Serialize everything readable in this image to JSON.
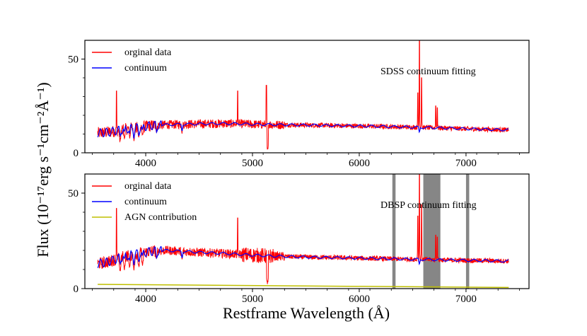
{
  "chart_data": [
    {
      "type": "line",
      "title": "",
      "annotation": "SDSS continuum fitting",
      "xlim": [
        3430,
        7590
      ],
      "ylim": [
        0,
        60
      ],
      "xticks": [
        4000,
        5000,
        6000,
        7000
      ],
      "yticks": [
        0,
        50
      ],
      "series": [
        {
          "name": "orginal data",
          "color": "#ff0000"
        },
        {
          "name": "continuum",
          "color": "#0000ff"
        }
      ],
      "continuum": {
        "x": [
          3550,
          3650,
          3750,
          3850,
          3950,
          4050,
          4200,
          4350,
          4500,
          4700,
          4860,
          5000,
          5200,
          5500,
          5800,
          6100,
          6400,
          6600,
          6800,
          7000,
          7200,
          7400
        ],
        "y": [
          10.5,
          11.0,
          12.0,
          13.0,
          13.5,
          14.5,
          15.0,
          15.2,
          15.4,
          15.6,
          15.5,
          15.2,
          15.0,
          14.8,
          14.5,
          14.2,
          13.8,
          13.5,
          13.2,
          12.8,
          12.5,
          12.2
        ]
      },
      "emission_lines": {
        "x": [
          3727,
          4861,
          5130,
          6548,
          6563,
          6584,
          6717,
          6731
        ],
        "y": [
          33,
          33,
          36,
          32,
          60,
          40,
          25,
          24
        ]
      },
      "absorption_dips": {
        "x": [
          3760,
          3800,
          3850,
          3890,
          3935,
          3970,
          4101,
          4340,
          5140
        ],
        "y": [
          5,
          6,
          7,
          6,
          7,
          8,
          10,
          10,
          0
        ]
      }
    },
    {
      "type": "line",
      "title": "",
      "annotation": "DBSP continuum fitting",
      "xlim": [
        3430,
        7590
      ],
      "ylim": [
        0,
        60
      ],
      "xticks": [
        4000,
        5000,
        6000,
        7000
      ],
      "yticks": [
        0,
        50
      ],
      "series": [
        {
          "name": "orginal data",
          "color": "#ff0000"
        },
        {
          "name": "continuum",
          "color": "#0000ff"
        },
        {
          "name": "AGN contribution",
          "color": "#bfbf00"
        }
      ],
      "continuum": {
        "x": [
          3550,
          3650,
          3750,
          3850,
          3950,
          4050,
          4200,
          4350,
          4500,
          4700,
          4860,
          5000,
          5200,
          5500,
          5800,
          6100,
          6400,
          6600,
          6800,
          7000,
          7200,
          7400
        ],
        "y": [
          13.0,
          14.0,
          16.0,
          17.5,
          18.5,
          19.5,
          20.0,
          19.5,
          19.0,
          18.5,
          18.0,
          17.5,
          17.0,
          16.5,
          16.2,
          15.8,
          15.5,
          15.3,
          15.0,
          14.8,
          14.6,
          14.4
        ]
      },
      "emission_lines": {
        "x": [
          3727,
          4861,
          6548,
          6563,
          6584,
          6717,
          6731
        ],
        "y": [
          42,
          37,
          38,
          60,
          44,
          28,
          27
        ]
      },
      "absorption_dips": {
        "x": [
          3760,
          3800,
          3850,
          3890,
          3935,
          3970,
          4101,
          4340,
          5140
        ],
        "y": [
          8,
          9,
          10,
          9,
          10,
          11,
          14,
          14,
          1
        ]
      },
      "agn": {
        "x": [
          3550,
          7400
        ],
        "y": [
          2.2,
          0.6
        ]
      },
      "masked_regions": [
        [
          6310,
          6340
        ],
        [
          6600,
          6760
        ],
        [
          7000,
          7030
        ]
      ]
    }
  ],
  "axes": {
    "xlabel": "Restframe Wavelength (Å)",
    "ylabel": "Flux (10⁻¹⁷erg s⁻¹cm⁻²Å⁻¹)"
  }
}
